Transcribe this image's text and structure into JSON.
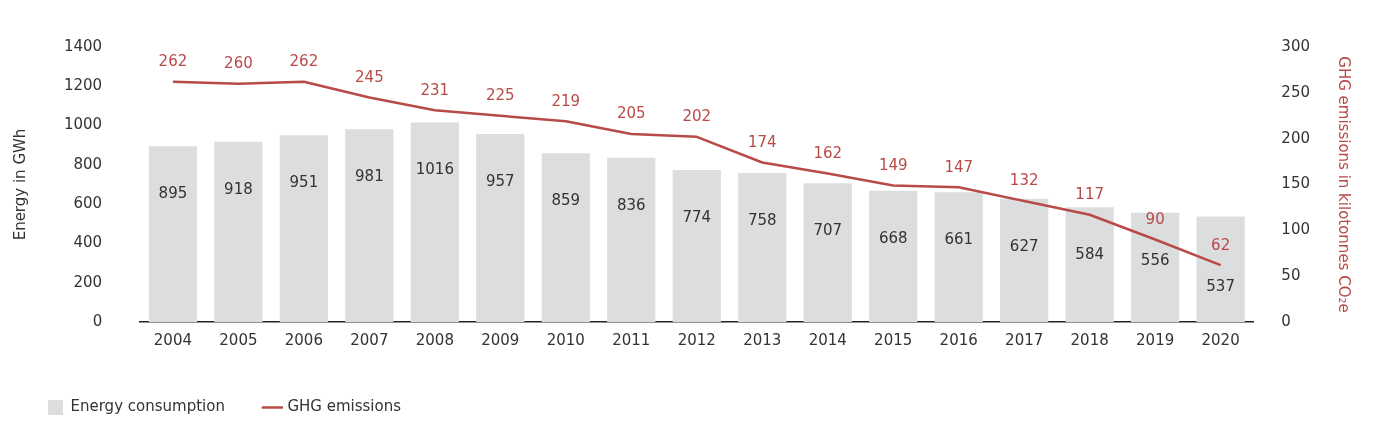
{
  "chart_data": {
    "type": "bar",
    "categories": [
      "2004",
      "2005",
      "2006",
      "2007",
      "2008",
      "2009",
      "2010",
      "2011",
      "2012",
      "2013",
      "2014",
      "2015",
      "2016",
      "2017",
      "2018",
      "2019",
      "2020"
    ],
    "series": [
      {
        "name": "Energy consumption",
        "color": "#dcdddf",
        "values": [
          895,
          918,
          951,
          981,
          1016,
          957,
          859,
          836,
          774,
          758,
          707,
          668,
          661,
          627,
          584,
          556,
          537
        ]
      },
      {
        "name": "GHG emissions",
        "type": "line",
        "axis": "y2",
        "color": "#b84a47",
        "values": [
          262,
          260,
          262,
          245,
          231,
          225,
          219,
          205,
          202,
          174,
          162,
          149,
          147,
          132,
          117,
          90,
          62
        ]
      }
    ],
    "ylabel": "Energy in GWh",
    "y2label": "GHG emissions in kilotonnes CO₂e",
    "ylim": [
      0,
      1400
    ],
    "yticks": [
      0,
      200,
      400,
      600,
      800,
      1000,
      1200,
      1400
    ],
    "y2lim": [
      0,
      300
    ],
    "y2ticks": [
      0,
      50,
      100,
      150,
      200,
      250,
      300
    ],
    "grid": false,
    "legend": "bottom left",
    "data_labels": true,
    "marker": "none",
    "line_style": "solid"
  }
}
